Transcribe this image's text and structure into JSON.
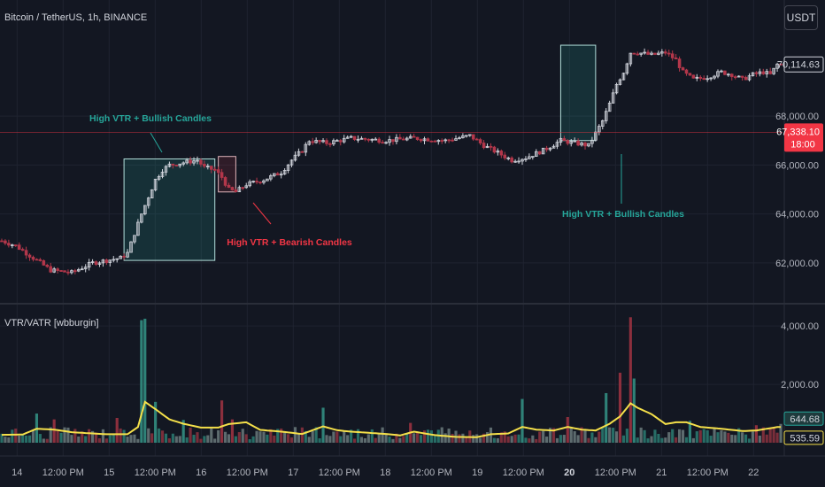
{
  "header": {
    "symbol_title": "Bitcoin / TetherUS, 1h, BINANCE",
    "currency_label": "USDT"
  },
  "indicator": {
    "title": "VTR/VATR [wbburgin]"
  },
  "colors": {
    "background": "#131722",
    "bull": "#d1d4dc",
    "bear": "#b2374a",
    "teal": "#26a69a",
    "red_label": "#f23645",
    "vatr_line": "#f5e04a",
    "grid": "#1f2330",
    "separator": "#2a2e39"
  },
  "annotations": [
    {
      "text": "High VTR + Bullish Candles",
      "color": "teal"
    },
    {
      "text": "High VTR + Bearish Candles",
      "color": "red"
    },
    {
      "text": "High VTR + Bullish Candles",
      "color": "teal"
    }
  ],
  "price_labels": {
    "last_price": "70,114.63",
    "red_line_price": "67,338.10",
    "red_line_time": "18:00",
    "vtr_value": "644.68",
    "vatr_value": "535.59"
  },
  "chart_data": [
    {
      "type": "candlestick",
      "title": "Bitcoin / TetherUS, 1h, BINANCE",
      "ylim": [
        60800,
        71300
      ],
      "y_ticks": [
        62000,
        64000,
        66000,
        68000
      ],
      "y_tick_labels": [
        "62,000.00",
        "64,000.00",
        "66,000.00",
        "68,000.00"
      ],
      "horizontal_line": 67338.1,
      "last_price": 70114.63,
      "anchors": [
        [
          0,
          62900
        ],
        [
          4,
          62700
        ],
        [
          9,
          62200
        ],
        [
          14,
          61700
        ],
        [
          20,
          61600
        ],
        [
          26,
          62000
        ],
        [
          34,
          62200
        ],
        [
          36,
          62400
        ],
        [
          38,
          63200
        ],
        [
          40,
          64000
        ],
        [
          42,
          64700
        ],
        [
          44,
          65400
        ],
        [
          46,
          65800
        ],
        [
          48,
          66000
        ],
        [
          52,
          66100
        ],
        [
          56,
          66200
        ],
        [
          58,
          65900
        ],
        [
          61,
          65800
        ],
        [
          63,
          65500
        ],
        [
          65,
          65000
        ],
        [
          67,
          64900
        ],
        [
          70,
          65200
        ],
        [
          75,
          65400
        ],
        [
          80,
          65700
        ],
        [
          83,
          66200
        ],
        [
          86,
          66600
        ],
        [
          88,
          67000
        ],
        [
          93,
          66900
        ],
        [
          100,
          67100
        ],
        [
          110,
          67000
        ],
        [
          118,
          67100
        ],
        [
          127,
          67000
        ],
        [
          134,
          67200
        ],
        [
          138,
          66800
        ],
        [
          142,
          66500
        ],
        [
          146,
          66200
        ],
        [
          150,
          66300
        ],
        [
          155,
          66600
        ],
        [
          160,
          67000
        ],
        [
          164,
          66900
        ],
        [
          168,
          66800
        ],
        [
          170,
          67300
        ],
        [
          172,
          67800
        ],
        [
          174,
          68500
        ],
        [
          176,
          69300
        ],
        [
          178,
          69800
        ],
        [
          180,
          70600
        ],
        [
          182,
          70600
        ],
        [
          186,
          70500
        ],
        [
          190,
          70600
        ],
        [
          193,
          70300
        ],
        [
          195,
          69800
        ],
        [
          198,
          69500
        ],
        [
          202,
          69600
        ],
        [
          206,
          69800
        ],
        [
          209,
          69700
        ],
        [
          212,
          69500
        ],
        [
          215,
          69700
        ],
        [
          218,
          69800
        ],
        [
          220,
          69700
        ],
        [
          222,
          70114
        ]
      ]
    },
    {
      "type": "bar+line",
      "title": "VTR/VATR [wbburgin]",
      "ylim": [
        0,
        4400
      ],
      "y_ticks": [
        2000,
        4000
      ],
      "y_tick_labels": [
        "2,000.00",
        "4,000.00"
      ],
      "spikes": [
        {
          "bar": 40,
          "value": 4200
        },
        {
          "bar": 41,
          "value": 4250
        },
        {
          "bar": 44,
          "value": 1400
        },
        {
          "bar": 63,
          "value": 1450
        },
        {
          "bar": 92,
          "value": 1200
        },
        {
          "bar": 149,
          "value": 1500
        },
        {
          "bar": 173,
          "value": 1700
        },
        {
          "bar": 177,
          "value": 2400
        },
        {
          "bar": 180,
          "value": 4300
        },
        {
          "bar": 181,
          "value": 2200
        },
        {
          "bar": 10,
          "value": 1000
        },
        {
          "bar": 15,
          "value": 800
        },
        {
          "bar": 33,
          "value": 850
        },
        {
          "bar": 52,
          "value": 780
        },
        {
          "bar": 66,
          "value": 800
        },
        {
          "bar": 117,
          "value": 680
        },
        {
          "bar": 162,
          "value": 880
        },
        {
          "bar": 197,
          "value": 750
        },
        {
          "bar": 216,
          "value": 600
        }
      ],
      "vtr_last": 644.68,
      "vatr_last": 535.59,
      "vatr_anchors": [
        [
          0,
          270
        ],
        [
          6,
          280
        ],
        [
          10,
          480
        ],
        [
          15,
          450
        ],
        [
          20,
          360
        ],
        [
          30,
          290
        ],
        [
          36,
          290
        ],
        [
          39,
          540
        ],
        [
          41,
          1400
        ],
        [
          44,
          1150
        ],
        [
          48,
          800
        ],
        [
          52,
          650
        ],
        [
          57,
          520
        ],
        [
          62,
          520
        ],
        [
          65,
          640
        ],
        [
          70,
          700
        ],
        [
          74,
          440
        ],
        [
          80,
          380
        ],
        [
          86,
          300
        ],
        [
          92,
          560
        ],
        [
          96,
          430
        ],
        [
          100,
          380
        ],
        [
          110,
          300
        ],
        [
          114,
          250
        ],
        [
          118,
          380
        ],
        [
          124,
          260
        ],
        [
          130,
          200
        ],
        [
          136,
          190
        ],
        [
          140,
          290
        ],
        [
          145,
          320
        ],
        [
          149,
          540
        ],
        [
          153,
          450
        ],
        [
          158,
          420
        ],
        [
          162,
          540
        ],
        [
          166,
          450
        ],
        [
          170,
          420
        ],
        [
          174,
          650
        ],
        [
          177,
          900
        ],
        [
          180,
          1350
        ],
        [
          182,
          1200
        ],
        [
          186,
          980
        ],
        [
          190,
          640
        ],
        [
          193,
          700
        ],
        [
          196,
          700
        ],
        [
          200,
          540
        ],
        [
          206,
          480
        ],
        [
          212,
          400
        ],
        [
          216,
          420
        ],
        [
          222,
          536
        ]
      ]
    }
  ],
  "x_axis": {
    "labels": [
      {
        "bar": 2,
        "text": "14"
      },
      {
        "bar": 8,
        "text": "12:00 PM"
      },
      {
        "bar": 14,
        "text": "15"
      },
      {
        "bar": 20,
        "text": "12:00 PM"
      },
      {
        "bar": 26,
        "text": "16"
      },
      {
        "bar": 32,
        "text": "12:00 PM"
      },
      {
        "bar": 38,
        "text": "17"
      },
      {
        "bar": 44,
        "text": "12:00 PM"
      },
      {
        "bar": 50,
        "text": "18"
      },
      {
        "bar": 56,
        "text": "12:00 PM"
      },
      {
        "bar": 62,
        "text": "19"
      },
      {
        "bar": 68,
        "text": "12:00 PM"
      },
      {
        "bar": 74,
        "text": "20"
      },
      {
        "bar": 80,
        "text": "12:00 PM"
      },
      {
        "bar": 86,
        "text": "21"
      },
      {
        "bar": 92,
        "text": "12:00 PM"
      },
      {
        "bar": 98,
        "text": "22"
      }
    ]
  }
}
